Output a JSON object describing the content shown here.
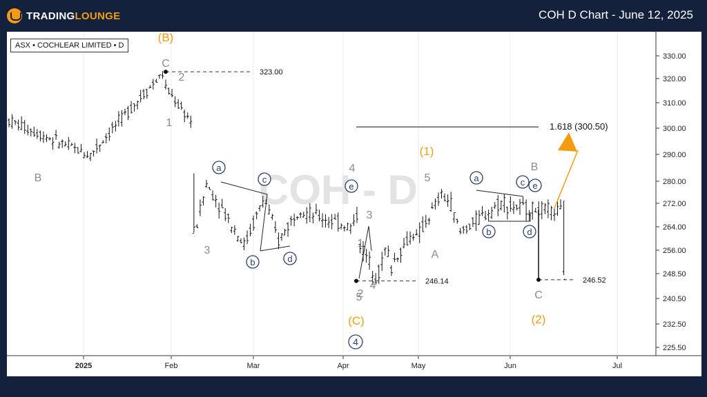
{
  "header": {
    "brand_prefix": "TRADING",
    "brand_suffix": "LOUNGE",
    "chart_title": "COH D Chart - June 12, 2025"
  },
  "symbol_label": "ASX • COCHLEAR LIMITED • D",
  "watermark": "COH - D",
  "colors": {
    "background": "#14213d",
    "accent_orange": "#f39c12",
    "wave_gray": "#8a8a8a",
    "circle_blue": "#2c3e6b"
  },
  "chart_data": {
    "type": "ohlc",
    "y_axis": {
      "ticks": [
        "330.00",
        "320.00",
        "310.00",
        "300.00",
        "290.00",
        "280.00",
        "272.00",
        "264.00",
        "256.00",
        "248.50",
        "240.50",
        "232.50",
        "225.50"
      ]
    },
    "x_axis": {
      "ticks": [
        "2025",
        "Feb",
        "Mar",
        "Apr",
        "May",
        "Jun",
        "Jul"
      ]
    },
    "levels": [
      {
        "label": "323.00",
        "value": 323.0
      },
      {
        "label": "246.14",
        "value": 246.14
      },
      {
        "label": "246.52",
        "value": 246.52
      },
      {
        "label": "1.618 (300.50)",
        "value": 300.5
      }
    ],
    "target": {
      "label": "1.618 (300.50)",
      "value": 300.5
    },
    "wave_labels": [
      {
        "text": "(B)",
        "style": "orange"
      },
      {
        "text": "C",
        "style": "gray"
      },
      {
        "text": "2",
        "style": "gray"
      },
      {
        "text": "1",
        "style": "gray"
      },
      {
        "text": "B",
        "style": "gray"
      },
      {
        "text": "3",
        "style": "gray"
      },
      {
        "text": "a",
        "style": "circle"
      },
      {
        "text": "c",
        "style": "circle"
      },
      {
        "text": "b",
        "style": "circle"
      },
      {
        "text": "d",
        "style": "circle"
      },
      {
        "text": "4",
        "style": "gray"
      },
      {
        "text": "e",
        "style": "circle"
      },
      {
        "text": "3",
        "style": "gray"
      },
      {
        "text": "1",
        "style": "gray"
      },
      {
        "text": "2",
        "style": "gray"
      },
      {
        "text": "4",
        "style": "gray"
      },
      {
        "text": "5",
        "style": "gray"
      },
      {
        "text": "(C)",
        "style": "orange"
      },
      {
        "text": "4",
        "style": "circle-big"
      },
      {
        "text": "(1)",
        "style": "orange"
      },
      {
        "text": "5",
        "style": "gray"
      },
      {
        "text": "A",
        "style": "gray"
      },
      {
        "text": "a",
        "style": "circle"
      },
      {
        "text": "b",
        "style": "circle"
      },
      {
        "text": "c",
        "style": "circle"
      },
      {
        "text": "e",
        "style": "circle"
      },
      {
        "text": "d",
        "style": "circle"
      },
      {
        "text": "B",
        "style": "gray"
      },
      {
        "text": "C",
        "style": "gray"
      },
      {
        "text": "(2)",
        "style": "orange"
      }
    ],
    "segments": [
      {
        "bars": 26,
        "from": 303,
        "to": 290
      },
      {
        "bars": 24,
        "from": 290,
        "to": 322
      },
      {
        "bars": 4,
        "from": 316,
        "to": 311
      },
      {
        "bars": 5,
        "from": 309,
        "to": 303
      },
      {
        "bars": 1,
        "from": 282,
        "to": 262
      },
      {
        "bars": 4,
        "from": 265,
        "to": 279
      },
      {
        "bars": 12,
        "from": 277,
        "to": 258
      },
      {
        "bars": 6,
        "from": 260,
        "to": 273
      },
      {
        "bars": 5,
        "from": 272,
        "to": 259
      },
      {
        "bars": 7,
        "from": 261,
        "to": 271
      },
      {
        "bars": 16,
        "from": 269,
        "to": 264
      },
      {
        "bars": 2,
        "from": 265,
        "to": 268
      },
      {
        "bars": 6,
        "from": 258,
        "to": 248
      },
      {
        "bars": 3,
        "from": 249,
        "to": 256
      },
      {
        "bars": 2,
        "from": 255,
        "to": 250
      },
      {
        "bars": 7,
        "from": 253,
        "to": 262
      },
      {
        "bars": 9,
        "from": 260,
        "to": 275
      },
      {
        "bars": 3,
        "from": 274,
        "to": 272
      },
      {
        "bars": 3,
        "from": 268,
        "to": 262
      },
      {
        "bars": 14,
        "from": 263,
        "to": 273
      },
      {
        "bars": 18,
        "from": 271,
        "to": 269
      },
      {
        "bars": 1,
        "from": 272,
        "to": 248
      }
    ]
  }
}
